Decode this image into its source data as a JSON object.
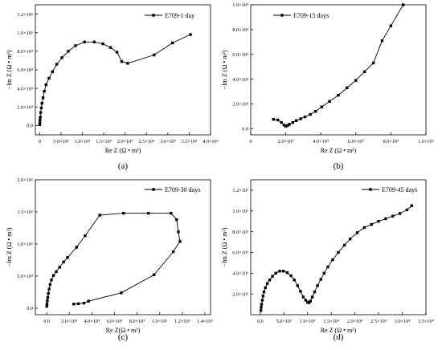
{
  "panel_labels": [
    "(a)",
    "(b)",
    "(c)",
    "(d)"
  ],
  "chart_data": [
    {
      "type": "line",
      "panel": "(a)",
      "legend": "E709-1 day",
      "legend_position": "top-right",
      "xlabel": "Re Z (Ω • m²)",
      "ylabel": "−Im Z (Ω • m²)",
      "xlim": [
        -1000,
        40000
      ],
      "ylim": [
        -10000,
        130000
      ],
      "x_ticks": [
        0,
        5000,
        10000,
        15000,
        20000,
        25000,
        30000,
        35000,
        40000
      ],
      "x_tick_labels": [
        "0",
        "5.0×10³",
        "1.0×10⁴",
        "1.5×10⁴",
        "2.0×10⁴",
        "2.5×10⁴",
        "3.0×10⁴",
        "3.5×10⁴",
        "4.0×10⁴"
      ],
      "y_ticks": [
        0,
        20000,
        40000,
        60000,
        80000,
        100000,
        120000
      ],
      "y_tick_labels": [
        "0.0",
        "2.0×10⁴",
        "4.0×10⁴",
        "6.0×10⁴",
        "8.0×10⁴",
        "1.0×10⁵",
        "1.2×10⁵"
      ],
      "series": [
        {
          "name": "E709-1 day",
          "x": [
            20,
            50,
            90,
            150,
            250,
            400,
            550,
            800,
            1100,
            1500,
            2200,
            3000,
            4000,
            5200,
            6700,
            8400,
            10500,
            12800,
            14800,
            16600,
            18100,
            19200,
            20600,
            26800,
            31100,
            35300
          ],
          "y": [
            1000,
            3000,
            6000,
            9000,
            14000,
            19000,
            24000,
            30000,
            37000,
            44000,
            51000,
            58000,
            66000,
            73000,
            80000,
            86000,
            90000,
            90000,
            88000,
            84000,
            79000,
            69000,
            67000,
            76000,
            89000,
            98000
          ]
        }
      ]
    },
    {
      "type": "line",
      "panel": "(b)",
      "legend": "E709-15 days",
      "legend_position": "top-left",
      "xlabel": "Re Z (Ω • m²)",
      "ylabel": "−Im Z (Ω • m²)",
      "xlim": [
        0,
        100000
      ],
      "ylim": [
        -5000,
        100000
      ],
      "x_ticks": [
        0,
        20000,
        40000,
        60000,
        80000,
        100000
      ],
      "x_tick_labels": [
        "0",
        "2.0×10⁴",
        "4.0×10⁴",
        "6.0×10⁴",
        "8.0×10⁴",
        "1.0×10⁵"
      ],
      "y_ticks": [
        0,
        20000,
        40000,
        60000,
        80000,
        100000
      ],
      "y_tick_labels": [
        "0.0",
        "2.0×10⁴",
        "4.0×10⁴",
        "6.0×10⁴",
        "8.0×10⁴",
        "1.0×10⁵"
      ],
      "series": [
        {
          "name": "E709-15 days",
          "x": [
            13000,
            15500,
            17500,
            19000,
            20000,
            21000,
            22000,
            24000,
            26000,
            28500,
            31000,
            34000,
            37000,
            40500,
            45000,
            50000,
            55000,
            60000,
            65000,
            70000,
            75000,
            80000,
            87000
          ],
          "y": [
            7500,
            7000,
            5000,
            3000,
            2000,
            2500,
            3500,
            5000,
            6500,
            8000,
            9500,
            11500,
            14000,
            17500,
            22000,
            27000,
            33000,
            39000,
            46000,
            53000,
            71000,
            83000,
            100000
          ]
        }
      ]
    },
    {
      "type": "line",
      "panel": "(c)",
      "legend": "E709-30 days",
      "legend_position": "top-right",
      "xlabel": "Re Z(Ω • m²)",
      "ylabel": "−Im Z (Ω • m²)",
      "xlim": [
        -10000,
        145000
      ],
      "ylim": [
        -10000,
        200000
      ],
      "x_ticks": [
        0,
        20000,
        40000,
        60000,
        80000,
        100000,
        120000,
        140000
      ],
      "x_tick_labels": [
        "0.0",
        "2.0×10⁴",
        "4.0×10⁴",
        "6.0×10⁴",
        "8.0×10⁴",
        "1.0×10⁵",
        "1.2×10⁵",
        "1.4×10⁵"
      ],
      "y_ticks": [
        0,
        50000,
        100000,
        150000,
        200000
      ],
      "y_tick_labels": [
        "0.0",
        "5.0×10⁴",
        "1.0×10⁵",
        "1.5×10⁵",
        "2.0×10⁵"
      ],
      "series": [
        {
          "name": "E709-30 days",
          "x": [
            100,
            300,
            600,
            1000,
            1500,
            2200,
            3000,
            4200,
            6000,
            8500,
            11500,
            15000,
            18500,
            26500,
            34000,
            47000,
            68000,
            90000,
            110000,
            115000,
            116500,
            118000,
            112000,
            95000,
            66000,
            37000,
            33000,
            28000,
            24000
          ],
          "y": [
            3000,
            7000,
            12000,
            17000,
            23000,
            30000,
            37000,
            44000,
            51000,
            57000,
            64000,
            72000,
            79000,
            95000,
            113000,
            145000,
            148000,
            148000,
            148000,
            138000,
            119000,
            104000,
            88000,
            52000,
            24000,
            11000,
            8000,
            7000,
            6500
          ]
        }
      ]
    },
    {
      "type": "line",
      "panel": "(d)",
      "legend": "E709-45 days",
      "legend_position": "top-right",
      "xlabel": "Re Z (Ω • m²)",
      "ylabel": "−Im Z (Ω • m²)",
      "xlim": [
        -2000,
        35000
      ],
      "ylim": [
        0,
        1300000
      ],
      "x_ticks": [
        0,
        5000,
        10000,
        15000,
        20000,
        25000,
        30000,
        35000
      ],
      "x_tick_labels": [
        "0.0",
        "5.0×10³",
        "1.0×10⁴",
        "1.5×10⁴",
        "2.0×10⁴",
        "2.5×10⁴",
        "3.0×10⁴",
        "3.5×10⁴"
      ],
      "y_ticks": [
        200000,
        400000,
        600000,
        800000,
        1000000,
        1200000
      ],
      "y_tick_labels": [
        "2.0×10⁵",
        "4.0×10⁵",
        "6.0×10⁵",
        "8.0×10⁵",
        "1.0×10⁶",
        "1.2×10⁶"
      ],
      "series": [
        {
          "name": "E709-45 days",
          "x": [
            150,
            200,
            300,
            450,
            600,
            800,
            1100,
            1500,
            2000,
            2600,
            3300,
            4100,
            4900,
            5700,
            6500,
            7200,
            7900,
            8500,
            9100,
            9600,
            10000,
            10300,
            10600,
            11000,
            11500,
            12100,
            12800,
            13500,
            14300,
            15300,
            16500,
            17800,
            19000,
            20500,
            22000,
            23500,
            25000,
            26500,
            28000,
            29500,
            31000,
            32000
          ],
          "y": [
            40000,
            70000,
            100000,
            140000,
            180000,
            220000,
            260000,
            300000,
            335000,
            370000,
            400000,
            420000,
            420000,
            405000,
            375000,
            335000,
            280000,
            225000,
            170000,
            140000,
            120000,
            115000,
            130000,
            170000,
            220000,
            280000,
            340000,
            400000,
            460000,
            530000,
            600000,
            670000,
            730000,
            790000,
            840000,
            870000,
            900000,
            925000,
            950000,
            975000,
            1010000,
            1050000
          ]
        }
      ]
    }
  ]
}
